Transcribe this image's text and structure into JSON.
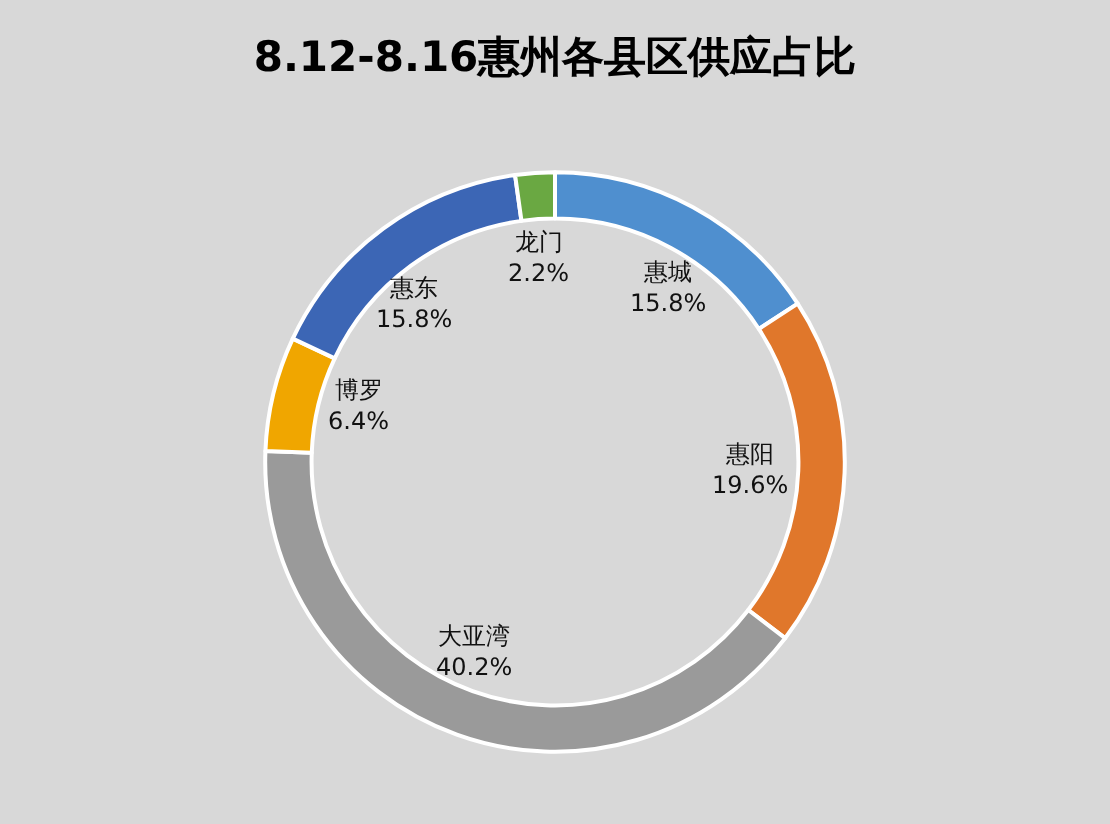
{
  "chart_data": {
    "type": "donut",
    "title": "8.12-8.16惠州各县区供应占比",
    "categories": [
      "惠城",
      "惠阳",
      "大亚湾",
      "博罗",
      "惠东",
      "龙门"
    ],
    "values": [
      15.8,
      19.6,
      40.2,
      6.4,
      15.8,
      2.2
    ],
    "value_labels": [
      "15.8%",
      "19.6%",
      "40.2%",
      "6.4%",
      "15.8%",
      "2.2%"
    ],
    "colors": [
      "#4f8fcf",
      "#e0772b",
      "#9a9a9a",
      "#f0a600",
      "#3c66b5",
      "#6aa842"
    ],
    "legend": false
  }
}
